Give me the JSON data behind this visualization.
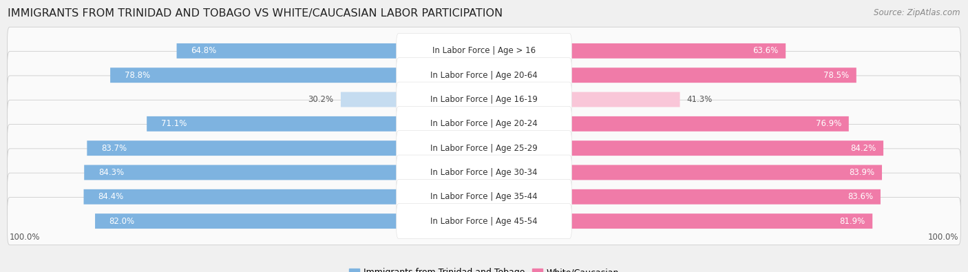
{
  "title": "IMMIGRANTS FROM TRINIDAD AND TOBAGO VS WHITE/CAUCASIAN LABOR PARTICIPATION",
  "source": "Source: ZipAtlas.com",
  "categories": [
    "In Labor Force | Age > 16",
    "In Labor Force | Age 20-64",
    "In Labor Force | Age 16-19",
    "In Labor Force | Age 20-24",
    "In Labor Force | Age 25-29",
    "In Labor Force | Age 30-34",
    "In Labor Force | Age 35-44",
    "In Labor Force | Age 45-54"
  ],
  "left_values": [
    64.8,
    78.8,
    30.2,
    71.1,
    83.7,
    84.3,
    84.4,
    82.0
  ],
  "right_values": [
    63.6,
    78.5,
    41.3,
    76.9,
    84.2,
    83.9,
    83.6,
    81.9
  ],
  "left_color": "#7EB3E0",
  "right_color": "#F07BA8",
  "left_color_light": "#C5DCF0",
  "right_color_light": "#F9C6D8",
  "left_label": "Immigrants from Trinidad and Tobago",
  "right_label": "White/Caucasian",
  "bg_color": "#F0F0F0",
  "row_bg_color": "#FAFAFA",
  "max_value": 100.0,
  "title_fontsize": 11.5,
  "bar_height": 0.62,
  "label_fontsize": 8.5,
  "cat_fontsize": 8.5
}
